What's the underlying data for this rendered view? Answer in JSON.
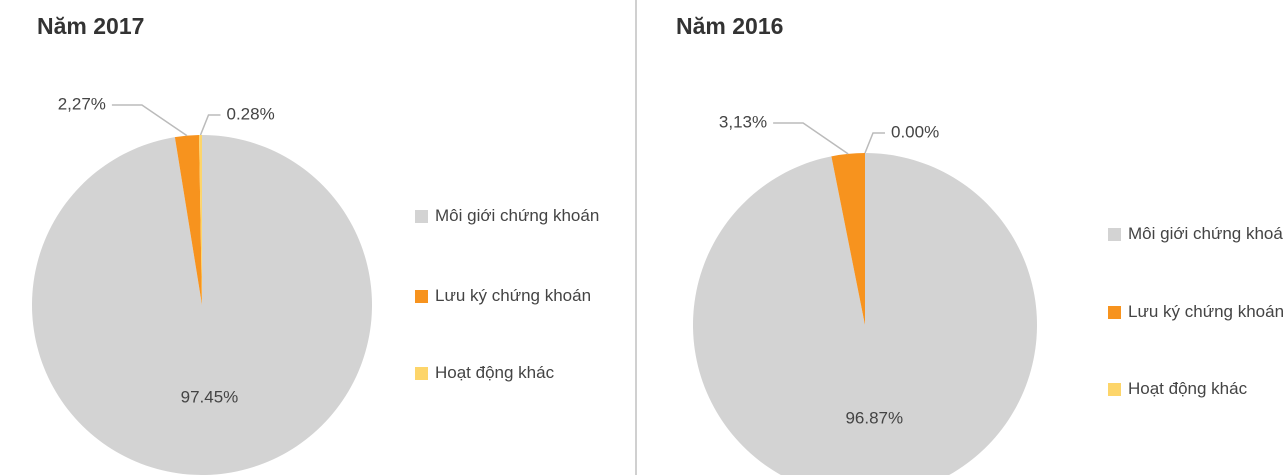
{
  "chart_data": [
    {
      "type": "pie",
      "title": "Năm 2017",
      "categories": [
        "Môi giới chứng khoán",
        "Lưu ký chứng khoán",
        "Hoạt động khác"
      ],
      "values": [
        97.45,
        2.27,
        0.28
      ],
      "value_labels": [
        "97.45%",
        "2,27%",
        "0.28%"
      ],
      "colors": [
        "#d3d3d3",
        "#f7931e",
        "#fdd56a"
      ]
    },
    {
      "type": "pie",
      "title": "Năm 2016",
      "categories": [
        "Môi giới chứng khoán",
        "Lưu ký chứng khoán",
        "Hoạt động khác"
      ],
      "values": [
        96.87,
        3.13,
        0.0
      ],
      "value_labels": [
        "96.87%",
        "3,13%",
        "0.00%"
      ],
      "colors": [
        "#d3d3d3",
        "#f7931e",
        "#fdd56a"
      ]
    }
  ]
}
